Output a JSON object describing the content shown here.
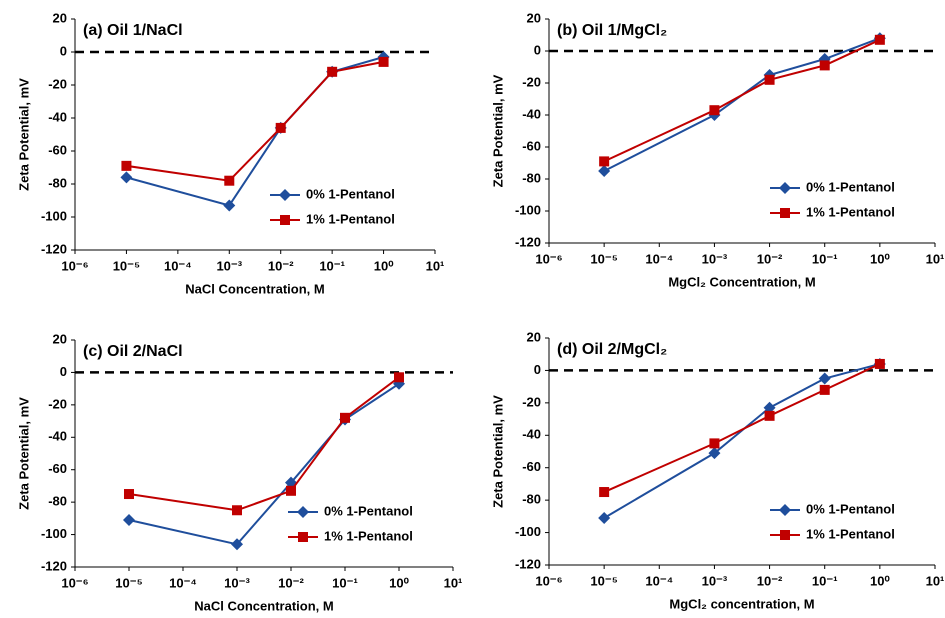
{
  "chart_data": [
    {
      "type": "line",
      "title": "(a) Oil 1/NaCl",
      "xlabel": "NaCl Concentration, M",
      "ylabel": "Zeta Potential, mV",
      "x": [
        1e-05,
        0.001,
        0.01,
        0.1,
        1
      ],
      "xscale": "log",
      "xlim": [
        1e-06,
        10
      ],
      "xticks": [
        {
          "value": 1e-06,
          "label": "10⁻⁶"
        },
        {
          "value": 1e-05,
          "label": "10⁻⁵"
        },
        {
          "value": 0.0001,
          "label": "10⁻⁴"
        },
        {
          "value": 0.001,
          "label": "10⁻³"
        },
        {
          "value": 0.01,
          "label": "10⁻²"
        },
        {
          "value": 0.1,
          "label": "10⁻¹"
        },
        {
          "value": 1,
          "label": "10⁰"
        },
        {
          "value": 10,
          "label": "10¹"
        }
      ],
      "ylim": [
        -120,
        20
      ],
      "yticks": [
        -120,
        -100,
        -80,
        -60,
        -40,
        -20,
        0,
        20
      ],
      "hline": 0,
      "legend": "lower right",
      "series": [
        {
          "name": "0% 1-Pentanol",
          "color": "#1f4e9c",
          "marker": "diamond",
          "values": [
            -76,
            -93,
            -46,
            -12,
            -3
          ]
        },
        {
          "name": "1% 1-Pentanol",
          "color": "#c00000",
          "marker": "square",
          "values": [
            -69,
            -78,
            -46,
            -12,
            -6
          ]
        }
      ]
    },
    {
      "type": "line",
      "title": "(b) Oil 1/MgCl₂",
      "xlabel": "MgCl₂ Concentration, M",
      "ylabel": "Zeta Potential, mV",
      "x": [
        1e-05,
        0.001,
        0.01,
        0.1,
        1
      ],
      "xscale": "log",
      "xlim": [
        1e-06,
        10
      ],
      "xticks": [
        {
          "value": 1e-06,
          "label": "10⁻⁶"
        },
        {
          "value": 1e-05,
          "label": "10⁻⁵"
        },
        {
          "value": 0.0001,
          "label": "10⁻⁴"
        },
        {
          "value": 0.001,
          "label": "10⁻³"
        },
        {
          "value": 0.01,
          "label": "10⁻²"
        },
        {
          "value": 0.1,
          "label": "10⁻¹"
        },
        {
          "value": 1,
          "label": "10⁰"
        },
        {
          "value": 10,
          "label": "10¹"
        }
      ],
      "ylim": [
        -120,
        20
      ],
      "yticks": [
        -120,
        -100,
        -80,
        -60,
        -40,
        -20,
        0,
        20
      ],
      "hline": 0,
      "legend": "lower right",
      "series": [
        {
          "name": "0% 1-Pentanol",
          "color": "#1f4e9c",
          "marker": "diamond",
          "values": [
            -75,
            -40,
            -15,
            -5,
            8
          ]
        },
        {
          "name": "1% 1-Pentanol",
          "color": "#c00000",
          "marker": "square",
          "values": [
            -69,
            -37,
            -18,
            -9,
            7
          ]
        }
      ]
    },
    {
      "type": "line",
      "title": "(c) Oil 2/NaCl",
      "xlabel": "NaCl Concentration, M",
      "ylabel": "Zeta Potential, mV",
      "x": [
        1e-05,
        0.001,
        0.01,
        0.1,
        1
      ],
      "xscale": "log",
      "xlim": [
        1e-06,
        10
      ],
      "xticks": [
        {
          "value": 1e-06,
          "label": "10⁻⁶"
        },
        {
          "value": 1e-05,
          "label": "10⁻⁵"
        },
        {
          "value": 0.0001,
          "label": "10⁻⁴"
        },
        {
          "value": 0.001,
          "label": "10⁻³"
        },
        {
          "value": 0.01,
          "label": "10⁻²"
        },
        {
          "value": 0.1,
          "label": "10⁻¹"
        },
        {
          "value": 1,
          "label": "10⁰"
        },
        {
          "value": 10,
          "label": "10¹"
        }
      ],
      "ylim": [
        -120,
        20
      ],
      "yticks": [
        -120,
        -100,
        -80,
        -60,
        -40,
        -20,
        0,
        20
      ],
      "hline": 0,
      "legend": "lower right",
      "series": [
        {
          "name": "0% 1-Pentanol",
          "color": "#1f4e9c",
          "marker": "diamond",
          "values": [
            -91,
            -106,
            -68,
            -29,
            -7
          ]
        },
        {
          "name": "1% 1-Pentanol",
          "color": "#c00000",
          "marker": "square",
          "values": [
            -75,
            -85,
            -73,
            -28,
            -3
          ]
        }
      ]
    },
    {
      "type": "line",
      "title": "(d) Oil 2/MgCl₂",
      "xlabel": "MgCl₂ concentration, M",
      "ylabel": "Zeta Potential, mV",
      "x": [
        1e-05,
        0.001,
        0.01,
        0.1,
        1
      ],
      "xscale": "log",
      "xlim": [
        1e-06,
        10
      ],
      "xticks": [
        {
          "value": 1e-06,
          "label": "10⁻⁶"
        },
        {
          "value": 1e-05,
          "label": "10⁻⁵"
        },
        {
          "value": 0.0001,
          "label": "10⁻⁴"
        },
        {
          "value": 0.001,
          "label": "10⁻³"
        },
        {
          "value": 0.01,
          "label": "10⁻²"
        },
        {
          "value": 0.1,
          "label": "10⁻¹"
        },
        {
          "value": 1,
          "label": "10⁰"
        },
        {
          "value": 10,
          "label": "10¹"
        }
      ],
      "ylim": [
        -120,
        20
      ],
      "yticks": [
        -120,
        -100,
        -80,
        -60,
        -40,
        -20,
        0,
        20
      ],
      "hline": 0,
      "legend": "lower right",
      "series": [
        {
          "name": "0% 1-Pentanol",
          "color": "#1f4e9c",
          "marker": "diamond",
          "values": [
            -91,
            -51,
            -23,
            -5,
            4
          ]
        },
        {
          "name": "1% 1-Pentanol",
          "color": "#c00000",
          "marker": "square",
          "values": [
            -75,
            -45,
            -28,
            -12,
            4
          ]
        }
      ]
    }
  ]
}
